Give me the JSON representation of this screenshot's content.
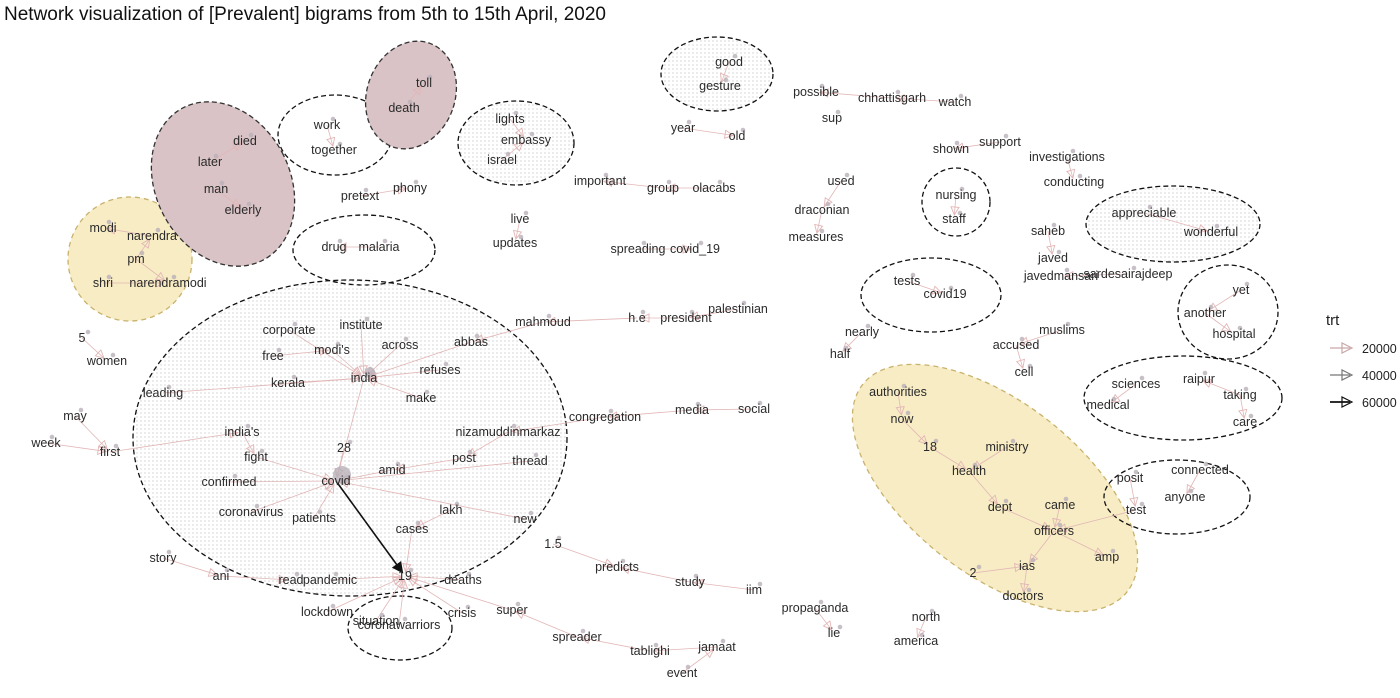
{
  "title": "Network visualization of [Prevalent] bigrams from 5th to 15th April, 2020",
  "legend": {
    "title": "trt",
    "items": [
      {
        "label": "20000",
        "color": "#c9a8a8"
      },
      {
        "label": "40000",
        "color": "#777777"
      },
      {
        "label": "60000",
        "color": "#111111"
      }
    ]
  },
  "colors": {
    "brown_fill": "#d9c3c6",
    "yellow_fill": "#f7ecc4",
    "edge_light": "#e0b8b8",
    "node": "#b9b0b9"
  },
  "nodes": [
    {
      "label": "modi"
    },
    {
      "label": "narendra"
    },
    {
      "label": "pm"
    },
    {
      "label": "shri"
    },
    {
      "label": "narendramodi"
    },
    {
      "label": "died"
    },
    {
      "label": "later"
    },
    {
      "label": "man"
    },
    {
      "label": "elderly"
    },
    {
      "label": "work"
    },
    {
      "label": "together"
    },
    {
      "label": "toll"
    },
    {
      "label": "death"
    },
    {
      "label": "lights"
    },
    {
      "label": "embassy"
    },
    {
      "label": "israel"
    },
    {
      "label": "good"
    },
    {
      "label": "gesture"
    },
    {
      "label": "possible"
    },
    {
      "label": "chhattisgarh"
    },
    {
      "label": "watch"
    },
    {
      "label": "sup"
    },
    {
      "label": "year"
    },
    {
      "label": "old"
    },
    {
      "label": "shown"
    },
    {
      "label": "support"
    },
    {
      "label": "investigations"
    },
    {
      "label": "conducting"
    },
    {
      "label": "pretext"
    },
    {
      "label": "phony"
    },
    {
      "label": "important"
    },
    {
      "label": "group"
    },
    {
      "label": "olacabs"
    },
    {
      "label": "used"
    },
    {
      "label": "draconian"
    },
    {
      "label": "measures"
    },
    {
      "label": "nursing"
    },
    {
      "label": "staff"
    },
    {
      "label": "appreciable"
    },
    {
      "label": "wonderful"
    },
    {
      "label": "live"
    },
    {
      "label": "updates"
    },
    {
      "label": "drug"
    },
    {
      "label": "malaria"
    },
    {
      "label": "spreading"
    },
    {
      "label": "covid_19"
    },
    {
      "label": "saheb"
    },
    {
      "label": "javed"
    },
    {
      "label": "javedmansari"
    },
    {
      "label": "sardesairajdeep"
    },
    {
      "label": "tests"
    },
    {
      "label": "covid19"
    },
    {
      "label": "yet"
    },
    {
      "label": "another"
    },
    {
      "label": "hospital"
    },
    {
      "label": "palestinian"
    },
    {
      "label": "mahmoud"
    },
    {
      "label": "h.e"
    },
    {
      "label": "president"
    },
    {
      "label": "5"
    },
    {
      "label": "women"
    },
    {
      "label": "leading"
    },
    {
      "label": "corporate"
    },
    {
      "label": "institute"
    },
    {
      "label": "modi's"
    },
    {
      "label": "across"
    },
    {
      "label": "free"
    },
    {
      "label": "abbas"
    },
    {
      "label": "india"
    },
    {
      "label": "refuses"
    },
    {
      "label": "kerala"
    },
    {
      "label": "make"
    },
    {
      "label": "nearly"
    },
    {
      "label": "half"
    },
    {
      "label": "muslims"
    },
    {
      "label": "accused"
    },
    {
      "label": "cell"
    },
    {
      "label": "may"
    },
    {
      "label": "week"
    },
    {
      "label": "first"
    },
    {
      "label": "india's"
    },
    {
      "label": "fight"
    },
    {
      "label": "confirmed"
    },
    {
      "label": "congregation"
    },
    {
      "label": "media"
    },
    {
      "label": "social"
    },
    {
      "label": "nizamuddinmarkaz"
    },
    {
      "label": "28"
    },
    {
      "label": "post"
    },
    {
      "label": "thread"
    },
    {
      "label": "amid"
    },
    {
      "label": "covid"
    },
    {
      "label": "coronavirus"
    },
    {
      "label": "patients"
    },
    {
      "label": "lakh"
    },
    {
      "label": "cases"
    },
    {
      "label": "new"
    },
    {
      "label": "sciences"
    },
    {
      "label": "raipur"
    },
    {
      "label": "medical"
    },
    {
      "label": "taking"
    },
    {
      "label": "care"
    },
    {
      "label": "authorities"
    },
    {
      "label": "now"
    },
    {
      "label": "18"
    },
    {
      "label": "ministry"
    },
    {
      "label": "health"
    },
    {
      "label": "dept"
    },
    {
      "label": "came"
    },
    {
      "label": "officers"
    },
    {
      "label": "amp"
    },
    {
      "label": "ias"
    },
    {
      "label": "2"
    },
    {
      "label": "doctors"
    },
    {
      "label": "posit"
    },
    {
      "label": "connected"
    },
    {
      "label": "anyone"
    },
    {
      "label": "test"
    },
    {
      "label": "1.5"
    },
    {
      "label": "predicts"
    },
    {
      "label": "study"
    },
    {
      "label": "iim"
    },
    {
      "label": "story"
    },
    {
      "label": "ani"
    },
    {
      "label": "read"
    },
    {
      "label": "pandemic"
    },
    {
      "label": "19"
    },
    {
      "label": "deaths"
    },
    {
      "label": "lockdown"
    },
    {
      "label": "situation"
    },
    {
      "label": "coronawarriors"
    },
    {
      "label": "crisis"
    },
    {
      "label": "super"
    },
    {
      "label": "spreader"
    },
    {
      "label": "tablighi"
    },
    {
      "label": "jamaat"
    },
    {
      "label": "event"
    },
    {
      "label": "propaganda"
    },
    {
      "label": "lie"
    },
    {
      "label": "north"
    },
    {
      "label": "america"
    }
  ],
  "edges": [
    {
      "from": "narendra",
      "to": "modi",
      "weight": 20000
    },
    {
      "from": "pm",
      "to": "narendra",
      "weight": 20000
    },
    {
      "from": "shri",
      "to": "narendramodi",
      "weight": 20000
    },
    {
      "from": "pm",
      "to": "narendramodi",
      "weight": 20000
    },
    {
      "from": "later",
      "to": "died",
      "weight": 20000
    },
    {
      "from": "man",
      "to": "elderly",
      "weight": 20000
    },
    {
      "from": "work",
      "to": "together",
      "weight": 20000
    },
    {
      "from": "death",
      "to": "toll",
      "weight": 20000
    },
    {
      "from": "lights",
      "to": "embassy",
      "weight": 20000
    },
    {
      "from": "israel",
      "to": "embassy",
      "weight": 20000
    },
    {
      "from": "good",
      "to": "gesture",
      "weight": 20000
    },
    {
      "from": "chhattisgarh",
      "to": "possible",
      "weight": 20000
    },
    {
      "from": "watch",
      "to": "chhattisgarh",
      "weight": 20000
    },
    {
      "from": "year",
      "to": "old",
      "weight": 20000
    },
    {
      "from": "support",
      "to": "shown",
      "weight": 20000
    },
    {
      "from": "investigations",
      "to": "conducting",
      "weight": 20000
    },
    {
      "from": "pretext",
      "to": "phony",
      "weight": 20000
    },
    {
      "from": "olacabs",
      "to": "group",
      "weight": 20000
    },
    {
      "from": "group",
      "to": "important",
      "weight": 20000
    },
    {
      "from": "used",
      "to": "draconian",
      "weight": 20000
    },
    {
      "from": "draconian",
      "to": "measures",
      "weight": 20000
    },
    {
      "from": "nursing",
      "to": "staff",
      "weight": 20000
    },
    {
      "from": "appreciable",
      "to": "wonderful",
      "weight": 20000
    },
    {
      "from": "live",
      "to": "updates",
      "weight": 20000
    },
    {
      "from": "malaria",
      "to": "drug",
      "weight": 20000
    },
    {
      "from": "spreading",
      "to": "covid_19",
      "weight": 20000
    },
    {
      "from": "saheb",
      "to": "javed",
      "weight": 20000
    },
    {
      "from": "sardesairajdeep",
      "to": "javedmansari",
      "weight": 20000
    },
    {
      "from": "tests",
      "to": "covid19",
      "weight": 20000
    },
    {
      "from": "yet",
      "to": "another",
      "weight": 20000
    },
    {
      "from": "another",
      "to": "hospital",
      "weight": 20000
    },
    {
      "from": "palestinian",
      "to": "president",
      "weight": 20000
    },
    {
      "from": "president",
      "to": "h.e",
      "weight": 20000
    },
    {
      "from": "h.e",
      "to": "mahmoud",
      "weight": 20000
    },
    {
      "from": "mahmoud",
      "to": "abbas",
      "weight": 20000
    },
    {
      "from": "5",
      "to": "women",
      "weight": 20000
    },
    {
      "from": "leading",
      "to": "india",
      "weight": 20000
    },
    {
      "from": "corporate",
      "to": "india",
      "weight": 20000
    },
    {
      "from": "institute",
      "to": "india",
      "weight": 20000
    },
    {
      "from": "across",
      "to": "india",
      "weight": 20000
    },
    {
      "from": "free",
      "to": "modi's",
      "weight": 20000
    },
    {
      "from": "modi's",
      "to": "india",
      "weight": 20000
    },
    {
      "from": "abbas",
      "to": "india",
      "weight": 20000
    },
    {
      "from": "refuses",
      "to": "india",
      "weight": 20000
    },
    {
      "from": "kerala",
      "to": "india",
      "weight": 20000
    },
    {
      "from": "make",
      "to": "india",
      "weight": 20000
    },
    {
      "from": "nearly",
      "to": "half",
      "weight": 20000
    },
    {
      "from": "muslims",
      "to": "accused",
      "weight": 20000
    },
    {
      "from": "accused",
      "to": "cell",
      "weight": 20000
    },
    {
      "from": "may",
      "to": "first",
      "weight": 20000
    },
    {
      "from": "week",
      "to": "first",
      "weight": 20000
    },
    {
      "from": "first",
      "to": "india's",
      "weight": 20000
    },
    {
      "from": "india's",
      "to": "fight",
      "weight": 20000
    },
    {
      "from": "confirmed",
      "to": "covid",
      "weight": 20000
    },
    {
      "from": "fight",
      "to": "covid",
      "weight": 20000
    },
    {
      "from": "media",
      "to": "congregation",
      "weight": 20000
    },
    {
      "from": "social",
      "to": "media",
      "weight": 20000
    },
    {
      "from": "congregation",
      "to": "nizamuddinmarkaz",
      "weight": 20000
    },
    {
      "from": "nizamuddinmarkaz",
      "to": "post",
      "weight": 20000
    },
    {
      "from": "28",
      "to": "covid",
      "weight": 20000
    },
    {
      "from": "post",
      "to": "amid",
      "weight": 20000
    },
    {
      "from": "thread",
      "to": "covid",
      "weight": 20000
    },
    {
      "from": "amid",
      "to": "covid",
      "weight": 20000
    },
    {
      "from": "coronavirus",
      "to": "covid",
      "weight": 20000
    },
    {
      "from": "patients",
      "to": "covid",
      "weight": 20000
    },
    {
      "from": "lakh",
      "to": "cases",
      "weight": 20000
    },
    {
      "from": "new",
      "to": "covid",
      "weight": 20000
    },
    {
      "from": "india",
      "to": "covid",
      "weight": 20000
    },
    {
      "from": "covid",
      "to": "19",
      "weight": 60000
    },
    {
      "from": "cases",
      "to": "19",
      "weight": 20000
    },
    {
      "from": "sciences",
      "to": "medical",
      "weight": 20000
    },
    {
      "from": "taking",
      "to": "raipur",
      "weight": 20000
    },
    {
      "from": "taking",
      "to": "care",
      "weight": 20000
    },
    {
      "from": "authorities",
      "to": "now",
      "weight": 20000
    },
    {
      "from": "now",
      "to": "18",
      "weight": 20000
    },
    {
      "from": "ministry",
      "to": "health",
      "weight": 20000
    },
    {
      "from": "18",
      "to": "health",
      "weight": 20000
    },
    {
      "from": "health",
      "to": "dept",
      "weight": 20000
    },
    {
      "from": "came",
      "to": "officers",
      "weight": 20000
    },
    {
      "from": "dept",
      "to": "officers",
      "weight": 20000
    },
    {
      "from": "officers",
      "to": "amp",
      "weight": 20000
    },
    {
      "from": "officers",
      "to": "ias",
      "weight": 20000
    },
    {
      "from": "ias",
      "to": "doctors",
      "weight": 20000
    },
    {
      "from": "2",
      "to": "ias",
      "weight": 20000
    },
    {
      "from": "posit",
      "to": "test",
      "weight": 20000
    },
    {
      "from": "connected",
      "to": "anyone",
      "weight": 20000
    },
    {
      "from": "test",
      "to": "officers",
      "weight": 20000
    },
    {
      "from": "1.5",
      "to": "predicts",
      "weight": 20000
    },
    {
      "from": "study",
      "to": "predicts",
      "weight": 20000
    },
    {
      "from": "iim",
      "to": "study",
      "weight": 20000
    },
    {
      "from": "story",
      "to": "ani",
      "weight": 20000
    },
    {
      "from": "ani",
      "to": "read",
      "weight": 20000
    },
    {
      "from": "pandemic",
      "to": "19",
      "weight": 20000
    },
    {
      "from": "deaths",
      "to": "19",
      "weight": 20000
    },
    {
      "from": "lockdown",
      "to": "19",
      "weight": 20000
    },
    {
      "from": "situation",
      "to": "19",
      "weight": 20000
    },
    {
      "from": "coronawarriors",
      "to": "19",
      "weight": 20000
    },
    {
      "from": "crisis",
      "to": "19",
      "weight": 20000
    },
    {
      "from": "super",
      "to": "19",
      "weight": 20000
    },
    {
      "from": "spreader",
      "to": "super",
      "weight": 20000
    },
    {
      "from": "tablighi",
      "to": "spreader",
      "weight": 20000
    },
    {
      "from": "jamaat",
      "to": "tablighi",
      "weight": 20000
    },
    {
      "from": "event",
      "to": "jamaat",
      "weight": 20000
    },
    {
      "from": "propaganda",
      "to": "lie",
      "weight": 20000
    },
    {
      "from": "north",
      "to": "america",
      "weight": 20000
    }
  ],
  "clusters": [
    {
      "name": "pm-narendramodi",
      "fill": "yellow"
    },
    {
      "name": "elderly-man-died",
      "fill": "brown"
    },
    {
      "name": "work-together",
      "fill": "none"
    },
    {
      "name": "death-toll",
      "fill": "brown"
    },
    {
      "name": "israel-embassy-lights",
      "fill": "dotted"
    },
    {
      "name": "good-gesture",
      "fill": "dotted"
    },
    {
      "name": "drug-malaria",
      "fill": "none"
    },
    {
      "name": "nursing-staff",
      "fill": "none"
    },
    {
      "name": "appreciable-wonderful",
      "fill": "dotted"
    },
    {
      "name": "tests-covid19",
      "fill": "none"
    },
    {
      "name": "yet-another-hospital",
      "fill": "none"
    },
    {
      "name": "covid-hub",
      "fill": "dotted"
    },
    {
      "name": "medical-sciences-raipur",
      "fill": "none"
    },
    {
      "name": "health-ministry-officers",
      "fill": "yellow"
    },
    {
      "name": "test-connected",
      "fill": "none"
    },
    {
      "name": "situation-coronawarriors",
      "fill": "none"
    }
  ]
}
